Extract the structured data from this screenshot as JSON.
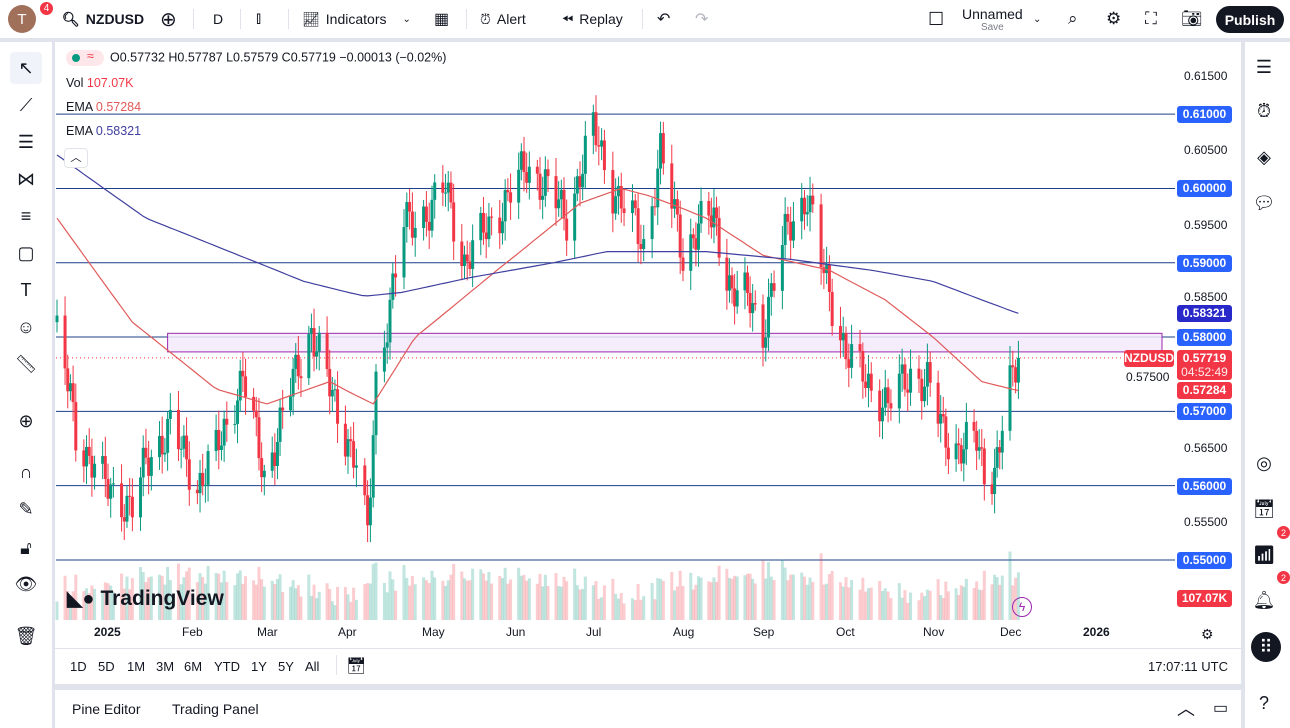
{
  "app": {
    "avatar_letter": "T",
    "notification_count": "4",
    "symbol": "NZDUSD",
    "interval": "D",
    "indicators_label": "Indicators",
    "alert_label": "Alert",
    "replay_label": "Replay",
    "layout_name": "Unnamed",
    "layout_save": "Save",
    "publish_label": "Publish"
  },
  "legend": {
    "ohlc": "O0.57732 H0.57787 L0.57579 C0.57719 −0.00013 (−0.02%)",
    "vol_label": "Vol",
    "vol_value": "107.07K",
    "ema1_label": "EMA",
    "ema1_value": "0.57284",
    "ema2_label": "EMA",
    "ema2_value": "0.58321"
  },
  "colors": {
    "up": "#089981",
    "down": "#f23645",
    "ema_fast": "#e05a5a",
    "ema_slow": "#3f3fa0",
    "hline": "#1e3f8a",
    "zone_fill": "#f3e9fb",
    "zone_border": "#9c27b0",
    "axis_blue": "#2962ff",
    "axis_navy": "#2929c9"
  },
  "price_axis": {
    "labels": [
      "0.61500",
      "0.60500",
      "0.59500",
      "0.58500",
      "0.57500",
      "0.56500",
      "0.55500"
    ],
    "lines": [
      "0.61000",
      "0.60000",
      "0.59000",
      "0.58000",
      "0.57000",
      "0.56000",
      "0.55000"
    ],
    "ema_slow_tag": "0.58321",
    "last_price": "0.57719",
    "countdown": "04:52:49",
    "ema_fast_tag": "0.57284",
    "symbol_tag": "NZDUSD",
    "volume_tag": "107.07K"
  },
  "time_axis": {
    "labels": [
      "2025",
      "Feb",
      "Mar",
      "Apr",
      "May",
      "Jun",
      "Jul",
      "Aug",
      "Sep",
      "Oct",
      "Nov",
      "Dec",
      "2026"
    ]
  },
  "range_buttons": [
    "1D",
    "5D",
    "1M",
    "3M",
    "6M",
    "YTD",
    "1Y",
    "5Y",
    "All"
  ],
  "clock": "17:07:11 UTC",
  "bottom_tabs": [
    "Pine Editor",
    "Trading Panel"
  ],
  "logo_text": "TradingView",
  "right_badges": {
    "ideas": "2",
    "alerts": "2"
  },
  "chart_data": {
    "type": "candlestick",
    "symbol": "NZDUSD",
    "interval": "D",
    "ylim": [
      0.5465,
      0.617
    ],
    "horizontal_levels": [
      0.61,
      0.6,
      0.59,
      0.58,
      0.57,
      0.56,
      0.55
    ],
    "zone": {
      "from": "2025-01-23",
      "low": 0.578,
      "high": 0.5805
    },
    "last_close": 0.57719,
    "close_path": [
      [
        "2024-12-13",
        0.58
      ],
      [
        "2024-12-18",
        0.572
      ],
      [
        "2024-12-20",
        0.567
      ],
      [
        "2024-12-31",
        0.56
      ],
      [
        "2025-01-10",
        0.557
      ],
      [
        "2025-01-15",
        0.563
      ],
      [
        "2025-01-24",
        0.568
      ],
      [
        "2025-02-03",
        0.56
      ],
      [
        "2025-02-12",
        0.566
      ],
      [
        "2025-02-20",
        0.575
      ],
      [
        "2025-02-28",
        0.561
      ],
      [
        "2025-03-10",
        0.573
      ],
      [
        "2025-03-18",
        0.581
      ],
      [
        "2025-03-26",
        0.572
      ],
      [
        "2025-04-04",
        0.563
      ],
      [
        "2025-04-08",
        0.553
      ],
      [
        "2025-04-11",
        0.574
      ],
      [
        "2025-04-21",
        0.595
      ],
      [
        "2025-04-30",
        0.597
      ],
      [
        "2025-05-06",
        0.6
      ],
      [
        "2025-05-13",
        0.59
      ],
      [
        "2025-05-20",
        0.594
      ],
      [
        "2025-05-26",
        0.597
      ],
      [
        "2025-06-05",
        0.603
      ],
      [
        "2025-06-13",
        0.6
      ],
      [
        "2025-06-20",
        0.596
      ],
      [
        "2025-06-30",
        0.608
      ],
      [
        "2025-07-07",
        0.6
      ],
      [
        "2025-07-15",
        0.595
      ],
      [
        "2025-07-18",
        0.592
      ],
      [
        "2025-07-24",
        0.605
      ],
      [
        "2025-08-01",
        0.591
      ],
      [
        "2025-08-07",
        0.595
      ],
      [
        "2025-08-13",
        0.596
      ],
      [
        "2025-08-20",
        0.586
      ],
      [
        "2025-08-27",
        0.585
      ],
      [
        "2025-09-01",
        0.581
      ],
      [
        "2025-09-10",
        0.595
      ],
      [
        "2025-09-17",
        0.599
      ],
      [
        "2025-09-22",
        0.59
      ],
      [
        "2025-10-01",
        0.578
      ],
      [
        "2025-10-10",
        0.573
      ],
      [
        "2025-10-16",
        0.571
      ],
      [
        "2025-10-24",
        0.575
      ],
      [
        "2025-10-30",
        0.574
      ],
      [
        "2025-11-05",
        0.567
      ],
      [
        "2025-11-11",
        0.565
      ],
      [
        "2025-11-18",
        0.566
      ],
      [
        "2025-11-21",
        0.562
      ],
      [
        "2025-11-25",
        0.562
      ],
      [
        "2025-12-01",
        0.573
      ],
      [
        "2025-12-04",
        0.5772
      ]
    ],
    "ema_fast": [
      [
        "2024-12-13",
        0.596
      ],
      [
        "2025-01-10",
        0.582
      ],
      [
        "2025-02-10",
        0.573
      ],
      [
        "2025-03-01",
        0.571
      ],
      [
        "2025-03-25",
        0.574
      ],
      [
        "2025-04-10",
        0.571
      ],
      [
        "2025-04-25",
        0.58
      ],
      [
        "2025-05-25",
        0.589
      ],
      [
        "2025-06-25",
        0.598
      ],
      [
        "2025-07-10",
        0.6
      ],
      [
        "2025-07-20",
        0.599
      ],
      [
        "2025-08-10",
        0.596
      ],
      [
        "2025-09-01",
        0.591
      ],
      [
        "2025-09-25",
        0.589
      ],
      [
        "2025-10-15",
        0.585
      ],
      [
        "2025-11-01",
        0.58
      ],
      [
        "2025-11-20",
        0.574
      ],
      [
        "2025-12-04",
        0.5728
      ]
    ],
    "ema_slow": [
      [
        "2024-12-13",
        0.6045
      ],
      [
        "2025-01-15",
        0.596
      ],
      [
        "2025-02-15",
        0.5915
      ],
      [
        "2025-03-15",
        0.5875
      ],
      [
        "2025-04-07",
        0.5855
      ],
      [
        "2025-04-20",
        0.586
      ],
      [
        "2025-05-15",
        0.588
      ],
      [
        "2025-06-15",
        0.59
      ],
      [
        "2025-07-05",
        0.5915
      ],
      [
        "2025-08-10",
        0.5915
      ],
      [
        "2025-09-10",
        0.5905
      ],
      [
        "2025-10-10",
        0.589
      ],
      [
        "2025-11-01",
        0.5875
      ],
      [
        "2025-11-20",
        0.585
      ],
      [
        "2025-12-04",
        0.5832
      ]
    ]
  }
}
